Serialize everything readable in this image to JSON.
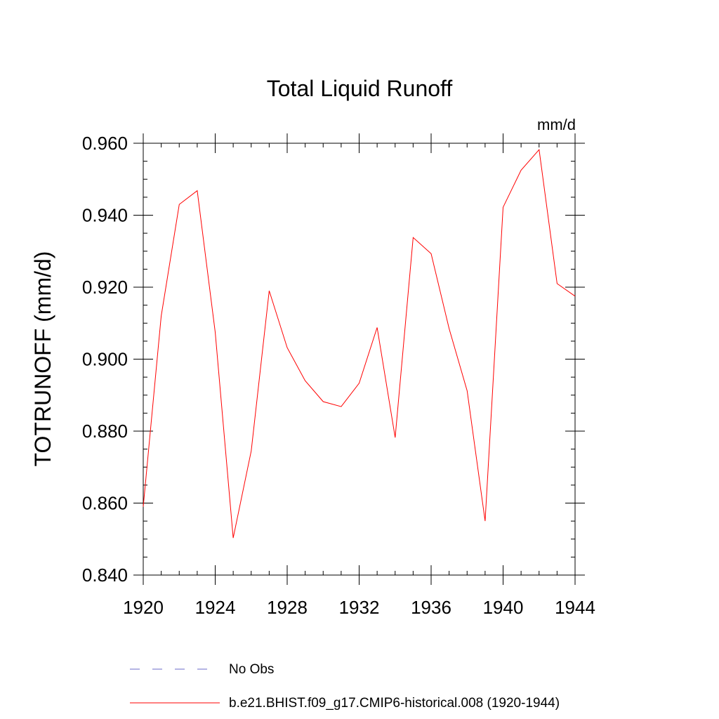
{
  "chart_data": {
    "type": "line",
    "title": "Total Liquid Runoff",
    "units_label": "mm/d",
    "ylabel": "TOTRUNOFF  (mm/d)",
    "xlabel": "",
    "xlim": [
      1920,
      1944
    ],
    "ylim": [
      0.84,
      0.96
    ],
    "x_ticks": [
      1920,
      1924,
      1928,
      1932,
      1936,
      1940,
      1944
    ],
    "x_tick_labels": [
      "1920",
      "1924",
      "1928",
      "1932",
      "1936",
      "1940",
      "1944"
    ],
    "y_ticks": [
      0.84,
      0.86,
      0.88,
      0.9,
      0.92,
      0.94,
      0.96
    ],
    "y_tick_labels": [
      "0.840",
      "0.860",
      "0.880",
      "0.900",
      "0.920",
      "0.940",
      "0.960"
    ],
    "grid": false,
    "legend_placement": "bottom",
    "series": [
      {
        "name": "b.e21.BHIST.f09_g17.CMIP6-historical.008 (1920-1944)",
        "color": "#ff0000",
        "style": "solid",
        "x": [
          1920,
          1921,
          1922,
          1923,
          1924,
          1925,
          1926,
          1927,
          1928,
          1929,
          1930,
          1931,
          1932,
          1933,
          1934,
          1935,
          1936,
          1937,
          1938,
          1939,
          1940,
          1941,
          1942,
          1943,
          1944
        ],
        "y": [
          0.859,
          0.912,
          0.943,
          0.9468,
          0.9075,
          0.8503,
          0.8745,
          0.919,
          0.9032,
          0.894,
          0.8882,
          0.8868,
          0.8933,
          0.9088,
          0.8782,
          0.9338,
          0.9293,
          0.9085,
          0.8912,
          0.855,
          0.9422,
          0.9525,
          0.9582,
          0.921,
          0.9175
        ]
      }
    ],
    "legend": [
      {
        "label": "No Obs",
        "color": "#6a6ac8",
        "style": "dashed"
      },
      {
        "label": "b.e21.BHIST.f09_g17.CMIP6-historical.008 (1920-1944)",
        "color": "#ff0000",
        "style": "solid"
      }
    ]
  }
}
